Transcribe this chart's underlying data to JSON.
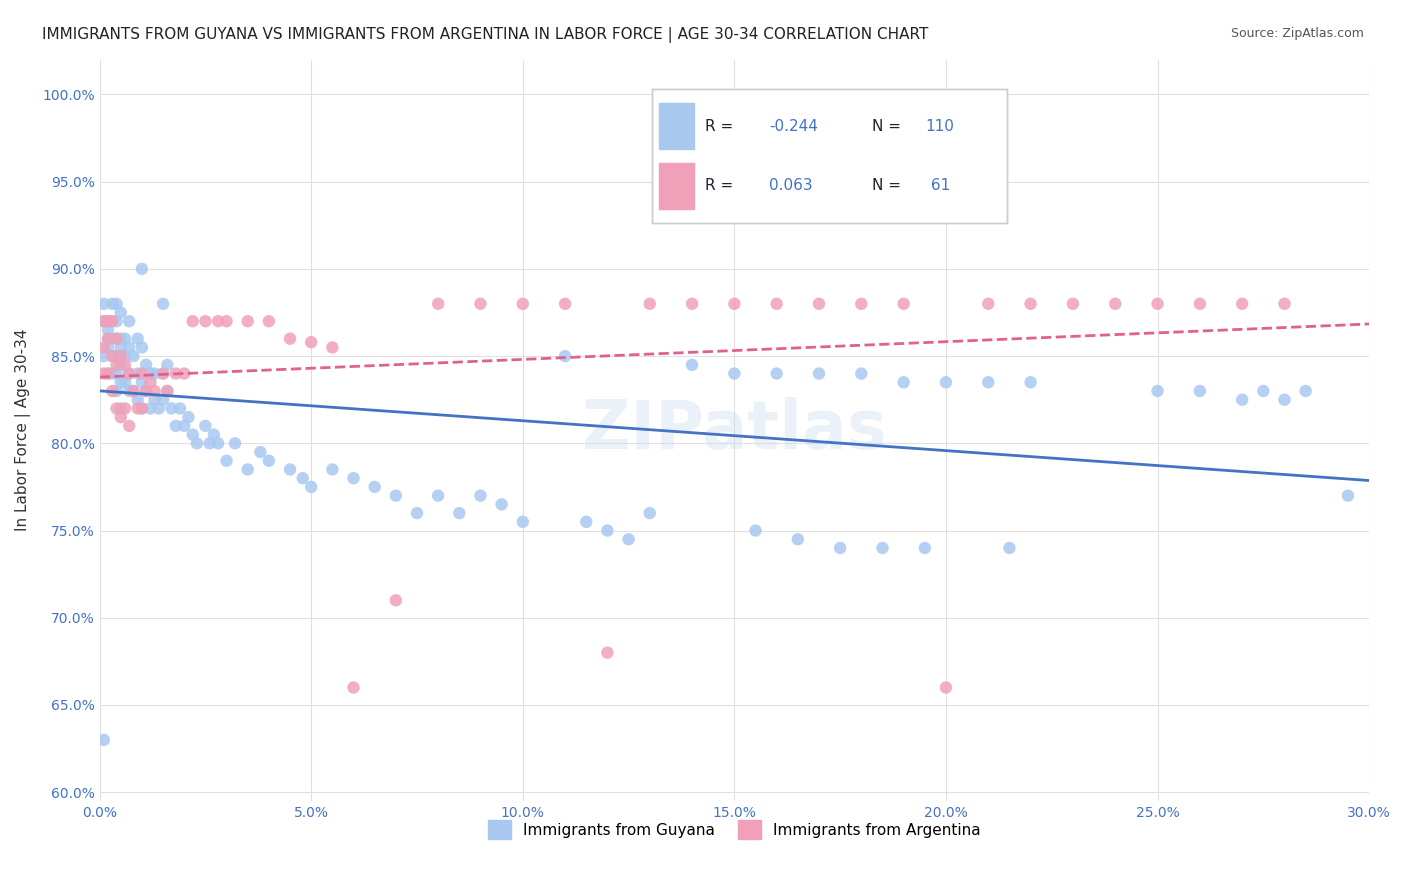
{
  "title": "IMMIGRANTS FROM GUYANA VS IMMIGRANTS FROM ARGENTINA IN LABOR FORCE | AGE 30-34 CORRELATION CHART",
  "source": "Source: ZipAtlas.com",
  "xlabel": "",
  "ylabel": "In Labor Force | Age 30-34",
  "xlim": [
    0.0,
    0.3
  ],
  "ylim": [
    0.6,
    1.02
  ],
  "xticks": [
    0.0,
    0.05,
    0.1,
    0.15,
    0.2,
    0.25,
    0.3
  ],
  "yticks": [
    0.6,
    0.65,
    0.7,
    0.75,
    0.8,
    0.85,
    0.9,
    0.95,
    1.0
  ],
  "ytick_labels": [
    "60.0%",
    "65.0%",
    "70.0%",
    "75.0%",
    "80.0%",
    "85.0%",
    "90.0%",
    "95.0%",
    "100.0%"
  ],
  "xtick_labels": [
    "0.0%",
    "5.0%",
    "10.0%",
    "15.0%",
    "20.0%",
    "25.0%",
    "30.0%"
  ],
  "guyana_color": "#a8c8f0",
  "argentina_color": "#f0a0b8",
  "guyana_line_color": "#4472c4",
  "argentina_line_color": "#e06090",
  "R_guyana": -0.244,
  "N_guyana": 110,
  "R_argentina": 0.063,
  "N_argentina": 61,
  "legend_label_guyana": "Immigrants from Guyana",
  "legend_label_argentina": "Immigrants from Argentina",
  "watermark": "ZIPatlas",
  "guyana_x": [
    0.001,
    0.001,
    0.001,
    0.001,
    0.002,
    0.002,
    0.002,
    0.002,
    0.002,
    0.003,
    0.003,
    0.003,
    0.003,
    0.003,
    0.004,
    0.004,
    0.004,
    0.004,
    0.004,
    0.004,
    0.005,
    0.005,
    0.005,
    0.005,
    0.005,
    0.005,
    0.006,
    0.006,
    0.006,
    0.007,
    0.007,
    0.007,
    0.007,
    0.008,
    0.008,
    0.009,
    0.009,
    0.009,
    0.01,
    0.01,
    0.01,
    0.011,
    0.011,
    0.012,
    0.012,
    0.013,
    0.013,
    0.014,
    0.015,
    0.015,
    0.016,
    0.016,
    0.017,
    0.018,
    0.019,
    0.02,
    0.021,
    0.022,
    0.023,
    0.025,
    0.026,
    0.027,
    0.028,
    0.03,
    0.032,
    0.035,
    0.038,
    0.04,
    0.045,
    0.048,
    0.05,
    0.055,
    0.06,
    0.065,
    0.07,
    0.075,
    0.08,
    0.085,
    0.09,
    0.095,
    0.1,
    0.11,
    0.115,
    0.12,
    0.125,
    0.13,
    0.14,
    0.15,
    0.155,
    0.16,
    0.165,
    0.17,
    0.175,
    0.18,
    0.185,
    0.19,
    0.195,
    0.2,
    0.21,
    0.215,
    0.22,
    0.25,
    0.26,
    0.27,
    0.275,
    0.28,
    0.285,
    0.295,
    0.01,
    0.015
  ],
  "guyana_y": [
    0.63,
    0.85,
    0.87,
    0.88,
    0.84,
    0.855,
    0.86,
    0.865,
    0.87,
    0.84,
    0.85,
    0.86,
    0.87,
    0.88,
    0.83,
    0.84,
    0.85,
    0.86,
    0.87,
    0.88,
    0.82,
    0.835,
    0.845,
    0.855,
    0.86,
    0.875,
    0.835,
    0.85,
    0.86,
    0.83,
    0.84,
    0.855,
    0.87,
    0.83,
    0.85,
    0.825,
    0.84,
    0.86,
    0.82,
    0.835,
    0.855,
    0.83,
    0.845,
    0.82,
    0.84,
    0.825,
    0.84,
    0.82,
    0.825,
    0.84,
    0.83,
    0.845,
    0.82,
    0.81,
    0.82,
    0.81,
    0.815,
    0.805,
    0.8,
    0.81,
    0.8,
    0.805,
    0.8,
    0.79,
    0.8,
    0.785,
    0.795,
    0.79,
    0.785,
    0.78,
    0.775,
    0.785,
    0.78,
    0.775,
    0.77,
    0.76,
    0.77,
    0.76,
    0.77,
    0.765,
    0.755,
    0.85,
    0.755,
    0.75,
    0.745,
    0.76,
    0.845,
    0.84,
    0.75,
    0.84,
    0.745,
    0.84,
    0.74,
    0.84,
    0.74,
    0.835,
    0.74,
    0.835,
    0.835,
    0.74,
    0.835,
    0.83,
    0.83,
    0.825,
    0.83,
    0.825,
    0.83,
    0.77,
    0.9,
    0.88
  ],
  "argentina_x": [
    0.001,
    0.001,
    0.001,
    0.002,
    0.002,
    0.002,
    0.003,
    0.003,
    0.003,
    0.004,
    0.004,
    0.004,
    0.005,
    0.005,
    0.006,
    0.006,
    0.007,
    0.007,
    0.008,
    0.009,
    0.01,
    0.01,
    0.011,
    0.012,
    0.013,
    0.015,
    0.016,
    0.018,
    0.02,
    0.022,
    0.025,
    0.028,
    0.03,
    0.035,
    0.04,
    0.045,
    0.05,
    0.055,
    0.06,
    0.07,
    0.08,
    0.09,
    0.1,
    0.11,
    0.12,
    0.13,
    0.14,
    0.15,
    0.16,
    0.17,
    0.18,
    0.19,
    0.2,
    0.21,
    0.22,
    0.23,
    0.24,
    0.25,
    0.26,
    0.27,
    0.28
  ],
  "argentina_y": [
    0.84,
    0.855,
    0.87,
    0.84,
    0.86,
    0.87,
    0.83,
    0.85,
    0.87,
    0.82,
    0.845,
    0.86,
    0.815,
    0.85,
    0.82,
    0.845,
    0.81,
    0.84,
    0.83,
    0.82,
    0.82,
    0.84,
    0.83,
    0.835,
    0.83,
    0.84,
    0.83,
    0.84,
    0.84,
    0.87,
    0.87,
    0.87,
    0.87,
    0.87,
    0.87,
    0.86,
    0.858,
    0.855,
    0.66,
    0.71,
    0.88,
    0.88,
    0.88,
    0.88,
    0.68,
    0.88,
    0.88,
    0.88,
    0.88,
    0.88,
    0.88,
    0.88,
    0.66,
    0.88,
    0.88,
    0.88,
    0.88,
    0.88,
    0.88,
    0.88,
    0.88
  ]
}
